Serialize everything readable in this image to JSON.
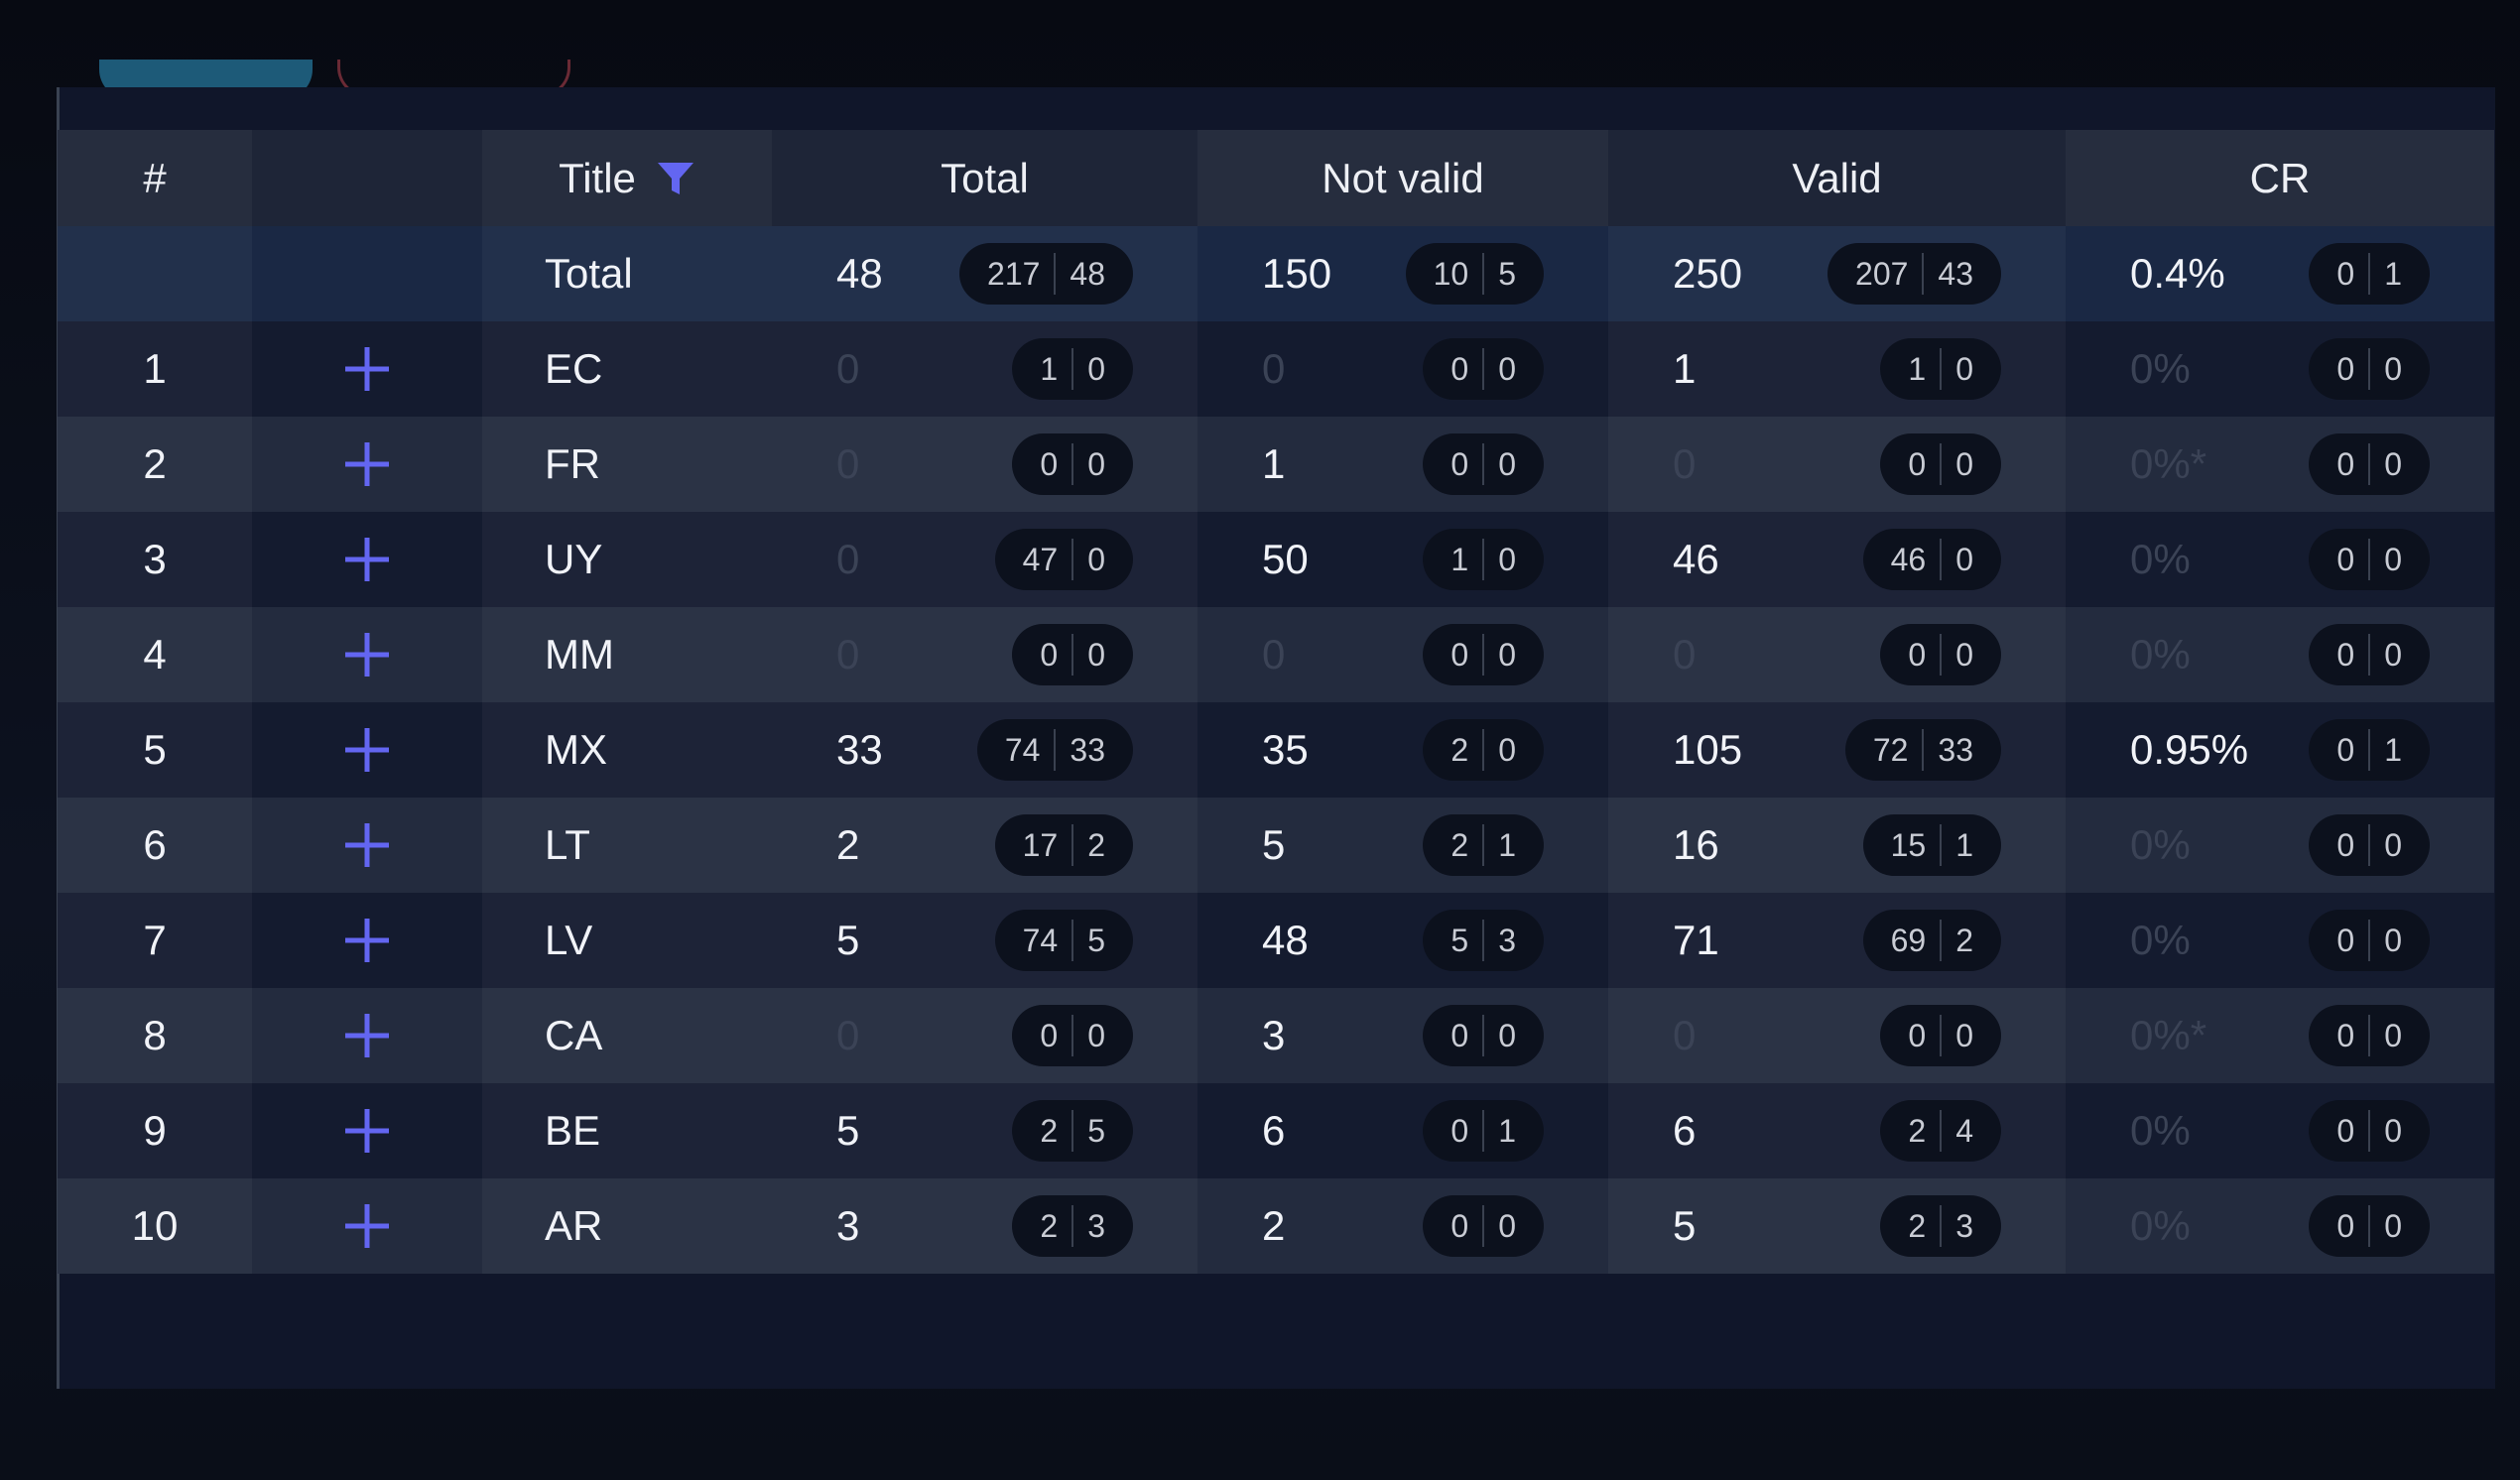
{
  "header": {
    "columns": [
      "#",
      "Title",
      "Total",
      "Not valid",
      "Valid",
      "CR"
    ]
  },
  "total_row": {
    "label": "Total",
    "cells": [
      {
        "value": "48",
        "split": [
          "217",
          "48"
        ]
      },
      {
        "value": "150",
        "split": [
          "10",
          "5"
        ]
      },
      {
        "value": "250",
        "split": [
          "207",
          "43"
        ]
      },
      {
        "value": "0.4%",
        "split": [
          "0",
          "1"
        ]
      }
    ]
  },
  "rows": [
    {
      "index": "1",
      "title": "EC",
      "cells": [
        {
          "value": "0",
          "split": [
            "1",
            "0"
          ]
        },
        {
          "value": "0",
          "split": [
            "0",
            "0"
          ]
        },
        {
          "value": "1",
          "split": [
            "1",
            "0"
          ]
        },
        {
          "value": "0%",
          "split": [
            "0",
            "0"
          ]
        }
      ]
    },
    {
      "index": "2",
      "title": "FR",
      "cells": [
        {
          "value": "0",
          "split": [
            "0",
            "0"
          ]
        },
        {
          "value": "1",
          "split": [
            "0",
            "0"
          ]
        },
        {
          "value": "0",
          "split": [
            "0",
            "0"
          ]
        },
        {
          "value": "0%*",
          "split": [
            "0",
            "0"
          ]
        }
      ]
    },
    {
      "index": "3",
      "title": "UY",
      "cells": [
        {
          "value": "0",
          "split": [
            "47",
            "0"
          ]
        },
        {
          "value": "50",
          "split": [
            "1",
            "0"
          ]
        },
        {
          "value": "46",
          "split": [
            "46",
            "0"
          ]
        },
        {
          "value": "0%",
          "split": [
            "0",
            "0"
          ]
        }
      ]
    },
    {
      "index": "4",
      "title": "MM",
      "cells": [
        {
          "value": "0",
          "split": [
            "0",
            "0"
          ]
        },
        {
          "value": "0",
          "split": [
            "0",
            "0"
          ]
        },
        {
          "value": "0",
          "split": [
            "0",
            "0"
          ]
        },
        {
          "value": "0%",
          "split": [
            "0",
            "0"
          ]
        }
      ]
    },
    {
      "index": "5",
      "title": "MX",
      "cells": [
        {
          "value": "33",
          "split": [
            "74",
            "33"
          ]
        },
        {
          "value": "35",
          "split": [
            "2",
            "0"
          ]
        },
        {
          "value": "105",
          "split": [
            "72",
            "33"
          ]
        },
        {
          "value": "0.95%",
          "split": [
            "0",
            "1"
          ]
        }
      ]
    },
    {
      "index": "6",
      "title": "LT",
      "cells": [
        {
          "value": "2",
          "split": [
            "17",
            "2"
          ]
        },
        {
          "value": "5",
          "split": [
            "2",
            "1"
          ]
        },
        {
          "value": "16",
          "split": [
            "15",
            "1"
          ]
        },
        {
          "value": "0%",
          "split": [
            "0",
            "0"
          ]
        }
      ]
    },
    {
      "index": "7",
      "title": "LV",
      "cells": [
        {
          "value": "5",
          "split": [
            "74",
            "5"
          ]
        },
        {
          "value": "48",
          "split": [
            "5",
            "3"
          ]
        },
        {
          "value": "71",
          "split": [
            "69",
            "2"
          ]
        },
        {
          "value": "0%",
          "split": [
            "0",
            "0"
          ]
        }
      ]
    },
    {
      "index": "8",
      "title": "CA",
      "cells": [
        {
          "value": "0",
          "split": [
            "0",
            "0"
          ]
        },
        {
          "value": "3",
          "split": [
            "0",
            "0"
          ]
        },
        {
          "value": "0",
          "split": [
            "0",
            "0"
          ]
        },
        {
          "value": "0%*",
          "split": [
            "0",
            "0"
          ]
        }
      ]
    },
    {
      "index": "9",
      "title": "BE",
      "cells": [
        {
          "value": "5",
          "split": [
            "2",
            "5"
          ]
        },
        {
          "value": "6",
          "split": [
            "0",
            "1"
          ]
        },
        {
          "value": "6",
          "split": [
            "2",
            "4"
          ]
        },
        {
          "value": "0%",
          "split": [
            "0",
            "0"
          ]
        }
      ]
    },
    {
      "index": "10",
      "title": "AR",
      "cells": [
        {
          "value": "3",
          "split": [
            "2",
            "3"
          ]
        },
        {
          "value": "2",
          "split": [
            "0",
            "0"
          ]
        },
        {
          "value": "5",
          "split": [
            "2",
            "3"
          ]
        },
        {
          "value": "0%",
          "split": [
            "0",
            "0"
          ]
        }
      ]
    }
  ]
}
